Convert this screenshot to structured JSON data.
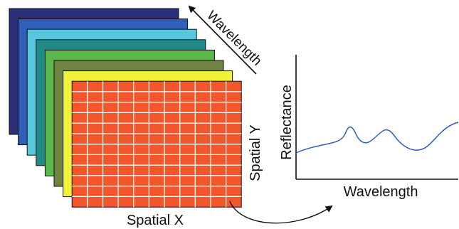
{
  "cube": {
    "band_colors": [
      "#2a2f7a",
      "#2f5fb8",
      "#58c6dc",
      "#1f8a86",
      "#5cb84d",
      "#6f8440",
      "#f2f23a",
      "#f2562a"
    ],
    "grid_color": "#ffffff",
    "label_spatial_x": "Spatial X",
    "label_spatial_y": "Spatial Y",
    "label_wavelength": "Wavelength"
  },
  "spectrum": {
    "label_y": "Reflectance",
    "label_x": "Wavelength",
    "line_color": "#2f5fb8"
  }
}
